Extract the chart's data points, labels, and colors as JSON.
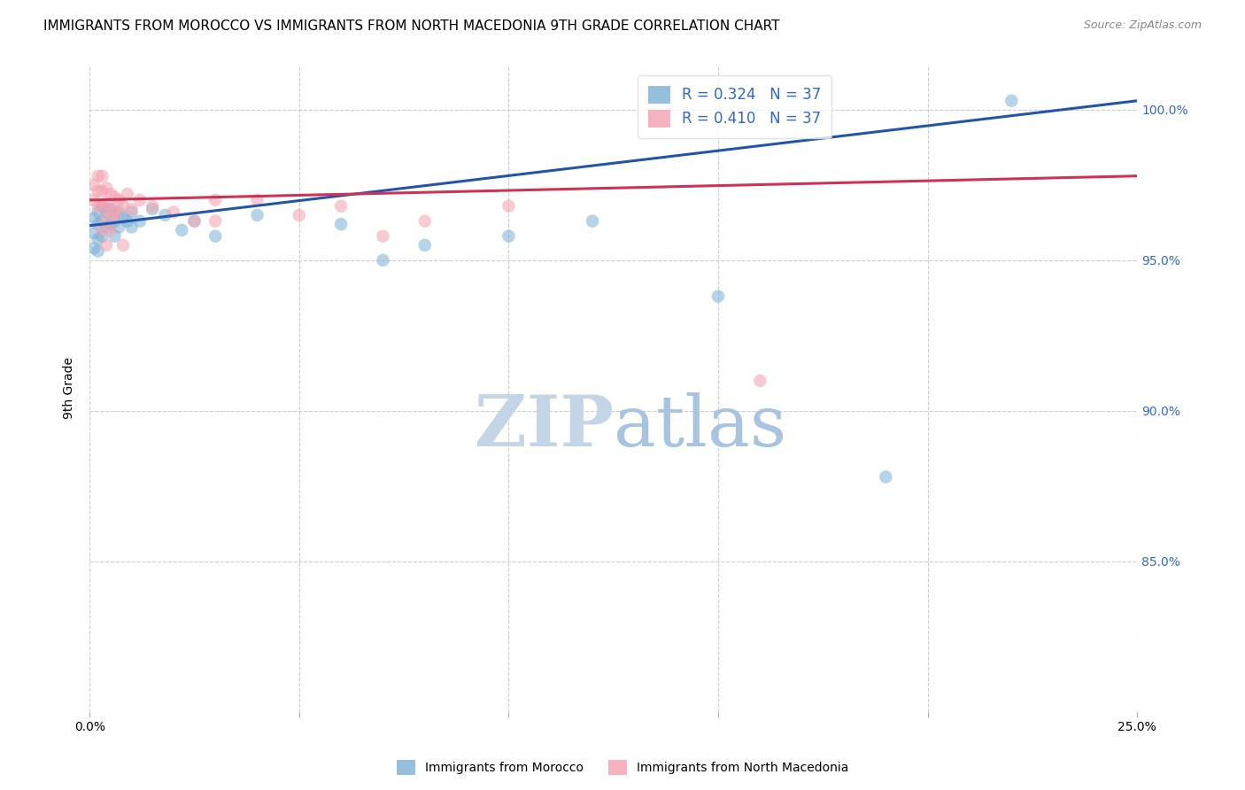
{
  "title": "IMMIGRANTS FROM MOROCCO VS IMMIGRANTS FROM NORTH MACEDONIA 9TH GRADE CORRELATION CHART",
  "source": "Source: ZipAtlas.com",
  "ylabel": "9th Grade",
  "xlim": [
    0.0,
    0.25
  ],
  "ylim": [
    0.8,
    1.015
  ],
  "yticks": [
    0.85,
    0.9,
    0.95,
    1.0
  ],
  "ytick_labels": [
    "85.0%",
    "90.0%",
    "95.0%",
    "100.0%"
  ],
  "xticks": [
    0.0,
    0.05,
    0.1,
    0.15,
    0.2,
    0.25
  ],
  "xtick_labels": [
    "0.0%",
    "",
    "",
    "",
    "",
    "25.0%"
  ],
  "morocco_color": "#7BAFD4",
  "macedonia_color": "#F4A0B0",
  "trend_morocco_color": "#2255AA",
  "trend_macedonia_color": "#CC3355",
  "watermark_zip": "ZIP",
  "watermark_atlas": "atlas",
  "watermark_color_zip": "#C8D8EC",
  "watermark_color_atlas": "#A8C8E8",
  "background_color": "#FFFFFF",
  "grid_color": "#CCCCCC",
  "title_fontsize": 11,
  "axis_label_fontsize": 10,
  "tick_fontsize": 10,
  "legend_fontsize": 12,
  "morocco_x": [
    0.001,
    0.001,
    0.001,
    0.002,
    0.002,
    0.002,
    0.002,
    0.003,
    0.003,
    0.003,
    0.004,
    0.004,
    0.005,
    0.005,
    0.006,
    0.006,
    0.007,
    0.007,
    0.008,
    0.009,
    0.01,
    0.01,
    0.012,
    0.015,
    0.018,
    0.022,
    0.025,
    0.03,
    0.04,
    0.06,
    0.07,
    0.08,
    0.1,
    0.12,
    0.15,
    0.19,
    0.22
  ],
  "morocco_y": [
    0.964,
    0.959,
    0.954,
    0.966,
    0.962,
    0.957,
    0.953,
    0.968,
    0.963,
    0.958,
    0.966,
    0.961,
    0.967,
    0.962,
    0.963,
    0.958,
    0.966,
    0.961,
    0.964,
    0.963,
    0.966,
    0.961,
    0.963,
    0.967,
    0.965,
    0.96,
    0.963,
    0.958,
    0.965,
    0.962,
    0.95,
    0.955,
    0.958,
    0.963,
    0.938,
    0.878,
    1.003
  ],
  "macedonia_x": [
    0.001,
    0.001,
    0.002,
    0.002,
    0.002,
    0.003,
    0.003,
    0.003,
    0.004,
    0.004,
    0.004,
    0.005,
    0.005,
    0.006,
    0.006,
    0.007,
    0.008,
    0.009,
    0.01,
    0.012,
    0.015,
    0.02,
    0.025,
    0.03,
    0.04,
    0.05,
    0.06,
    0.07,
    0.08,
    0.1,
    0.003,
    0.004,
    0.005,
    0.006,
    0.008,
    0.16,
    0.03
  ],
  "macedonia_y": [
    0.975,
    0.97,
    0.978,
    0.973,
    0.968,
    0.978,
    0.973,
    0.968,
    0.974,
    0.969,
    0.964,
    0.972,
    0.967,
    0.971,
    0.966,
    0.97,
    0.968,
    0.972,
    0.967,
    0.97,
    0.968,
    0.966,
    0.963,
    0.963,
    0.97,
    0.965,
    0.968,
    0.958,
    0.963,
    0.968,
    0.96,
    0.955,
    0.96,
    0.965,
    0.955,
    0.91,
    0.97
  ]
}
